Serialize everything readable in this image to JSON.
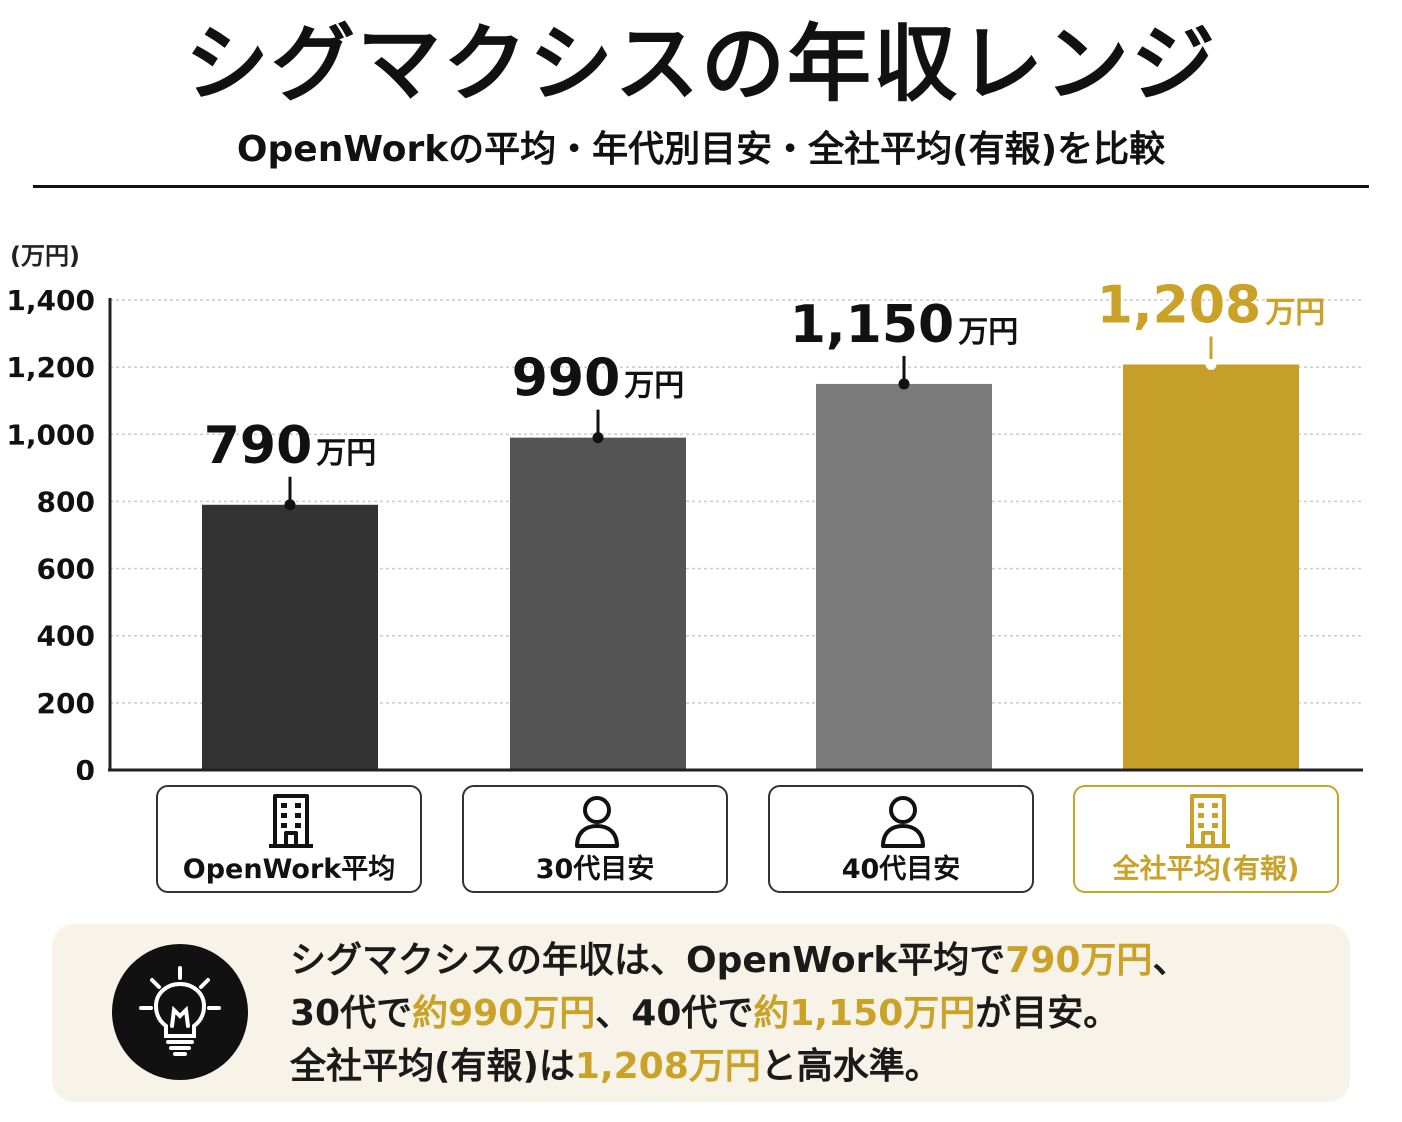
{
  "title": "シグマクシスの年収レンジ",
  "subtitle": "OpenWorkの平均・年代別目安・全社平均(有報)を比較",
  "colors": {
    "gold": "#c9a227",
    "bar_openwork": "#333333",
    "bar_30s": "#545454",
    "bar_40s": "#7a7a7a",
    "bar_company": "#c59f2a"
  },
  "chart_data": {
    "type": "bar",
    "unit_label": "(万円)",
    "ylim": [
      0,
      1400
    ],
    "yticks": [
      "0",
      "200",
      "400",
      "600",
      "800",
      "1,000",
      "1,200",
      "1,400"
    ],
    "ytick_values": [
      0,
      200,
      400,
      600,
      800,
      1000,
      1200,
      1400
    ],
    "grid": true,
    "categories": [
      "OpenWork平均",
      "30代目安",
      "40代目安",
      "全社平均(有報)"
    ],
    "values": [
      790,
      990,
      1150,
      1208
    ],
    "value_labels": [
      "790",
      "990",
      "1,150",
      "1,208"
    ],
    "value_unit": "万円",
    "category_icons": [
      "building-icon",
      "person-icon",
      "person-icon",
      "building-icon"
    ]
  },
  "note": {
    "icon": "lightbulb-icon",
    "line1": {
      "t1": "シグマクシスの年収は、OpenWork平均で",
      "h1": "790万円",
      "t2": "、"
    },
    "line2": {
      "t1": "30代で",
      "h1": "約990万円",
      "t2": "、40代で",
      "h2": "約1,150万円",
      "t3": "が目安。"
    },
    "line3": {
      "t1": "全社平均(有報)は",
      "h1": "1,208万円",
      "t2": "と高水準。"
    }
  }
}
